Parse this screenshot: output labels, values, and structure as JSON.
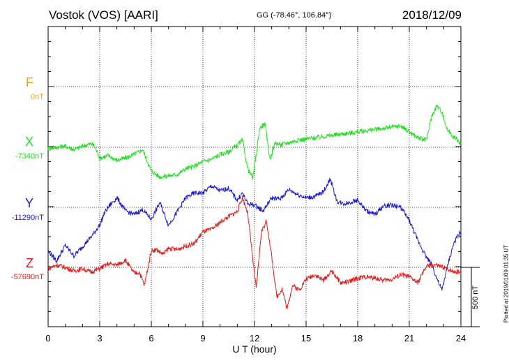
{
  "header": {
    "title": "Vostok (VOS)  [AARI]",
    "coords": "GG (-78.46°, 106.84°)",
    "date": "2018/12/09"
  },
  "components": [
    {
      "name": "F",
      "baseline": "0nT",
      "color": "#f2a500"
    },
    {
      "name": "X",
      "baseline": "-7340nT",
      "color": "#22dd22"
    },
    {
      "name": "Y",
      "baseline": "-11290nT",
      "color": "#1a1acc"
    },
    {
      "name": "Z",
      "baseline": "-57690nT",
      "color": "#e21b1b"
    }
  ],
  "scale_label": "500 nT",
  "plotted_note": "Plotted at 2019/01/09 01:35 UT",
  "chart_data": {
    "type": "line",
    "xlabel": "U T (hour)",
    "xlim": [
      0,
      24
    ],
    "xticks": [
      0,
      3,
      6,
      9,
      12,
      15,
      18,
      21,
      24
    ],
    "x_minor_step": 1,
    "grid": true,
    "y_units": "nT",
    "scale_bar_nT": 500,
    "series": [
      {
        "name": "F",
        "baseline_nT": 0,
        "color": "#f2a500",
        "x": [],
        "y": []
      },
      {
        "name": "X",
        "baseline_nT": -7340,
        "color": "#22dd22",
        "x": [
          0,
          0.5,
          1,
          1.5,
          2,
          2.5,
          2.7,
          3,
          3.5,
          4,
          4.5,
          5,
          5.5,
          6,
          6.5,
          7,
          7.5,
          8,
          8.5,
          9,
          9.5,
          10,
          10.5,
          11,
          11.3,
          11.6,
          11.9,
          12.1,
          12.3,
          12.6,
          12.9,
          13.2,
          13.5,
          14,
          14.5,
          15,
          15.5,
          16,
          16.5,
          17,
          17.5,
          18,
          18.5,
          19,
          19.5,
          20,
          20.5,
          21,
          21.5,
          22,
          22.3,
          22.6,
          22.9,
          23.2,
          23.5,
          23.8,
          24
        ],
        "y": [
          -10,
          0,
          10,
          -20,
          10,
          30,
          10,
          -90,
          -70,
          -110,
          -90,
          -60,
          -20,
          -200,
          -250,
          -240,
          -230,
          -180,
          -160,
          -120,
          -100,
          -60,
          -40,
          20,
          60,
          -180,
          -260,
          -60,
          160,
          200,
          -100,
          40,
          20,
          40,
          60,
          70,
          80,
          90,
          100,
          110,
          120,
          130,
          140,
          150,
          160,
          170,
          180,
          130,
          80,
          60,
          260,
          350,
          300,
          150,
          100,
          60,
          30
        ]
      },
      {
        "name": "Y",
        "baseline_nT": -11290,
        "color": "#1a1acc",
        "x": [
          0,
          0.5,
          1,
          1.5,
          2,
          2.5,
          3,
          3.3,
          3.6,
          4,
          4.5,
          5,
          5.5,
          6,
          6.5,
          7,
          7.5,
          8,
          8.5,
          9,
          9.5,
          10,
          10.5,
          11,
          11.3,
          11.6,
          12,
          12.5,
          13,
          13.5,
          14,
          14.5,
          15,
          15.5,
          16,
          16.4,
          16.8,
          17.2,
          18,
          18.5,
          19,
          19.5,
          20,
          20.5,
          21,
          21.5,
          22,
          22.3,
          22.6,
          22.9,
          23.3,
          23.6,
          24
        ],
        "y": [
          -370,
          -450,
          -320,
          -410,
          -330,
          -250,
          -150,
          -40,
          20,
          80,
          -30,
          -60,
          -20,
          -100,
          40,
          -150,
          -40,
          80,
          120,
          120,
          180,
          140,
          160,
          60,
          120,
          30,
          20,
          -30,
          80,
          70,
          150,
          110,
          80,
          90,
          130,
          240,
          50,
          30,
          60,
          -30,
          -60,
          10,
          20,
          0,
          -110,
          -280,
          -420,
          -480,
          -600,
          -700,
          -450,
          -300,
          -200
        ]
      },
      {
        "name": "Z",
        "baseline_nT": -57690,
        "color": "#e21b1b",
        "x": [
          0,
          0.5,
          1,
          1.5,
          2,
          2.5,
          3,
          3.5,
          4,
          4.5,
          5,
          5.3,
          5.6,
          6,
          6.3,
          6.7,
          7,
          7.5,
          8,
          8.5,
          9,
          9.5,
          10,
          10.5,
          11,
          11.3,
          11.6,
          11.9,
          12.1,
          12.4,
          12.7,
          13,
          13.3,
          13.6,
          13.9,
          14.2,
          14.6,
          15,
          15.5,
          16,
          16.5,
          17,
          17.5,
          18,
          18.5,
          19,
          19.5,
          20,
          20.5,
          21,
          21.5,
          22,
          22.5,
          23,
          23.5,
          24
        ],
        "y": [
          -10,
          20,
          0,
          -30,
          -10,
          -40,
          -10,
          30,
          20,
          60,
          -50,
          -40,
          -150,
          140,
          150,
          110,
          160,
          150,
          180,
          200,
          300,
          320,
          380,
          430,
          470,
          590,
          460,
          70,
          -180,
          300,
          390,
          90,
          -250,
          -180,
          -350,
          -150,
          -190,
          -100,
          -60,
          -110,
          -30,
          -130,
          -120,
          -90,
          -80,
          -90,
          -110,
          -100,
          -60,
          -80,
          -130,
          10,
          20,
          0,
          -30,
          -40
        ]
      }
    ]
  }
}
